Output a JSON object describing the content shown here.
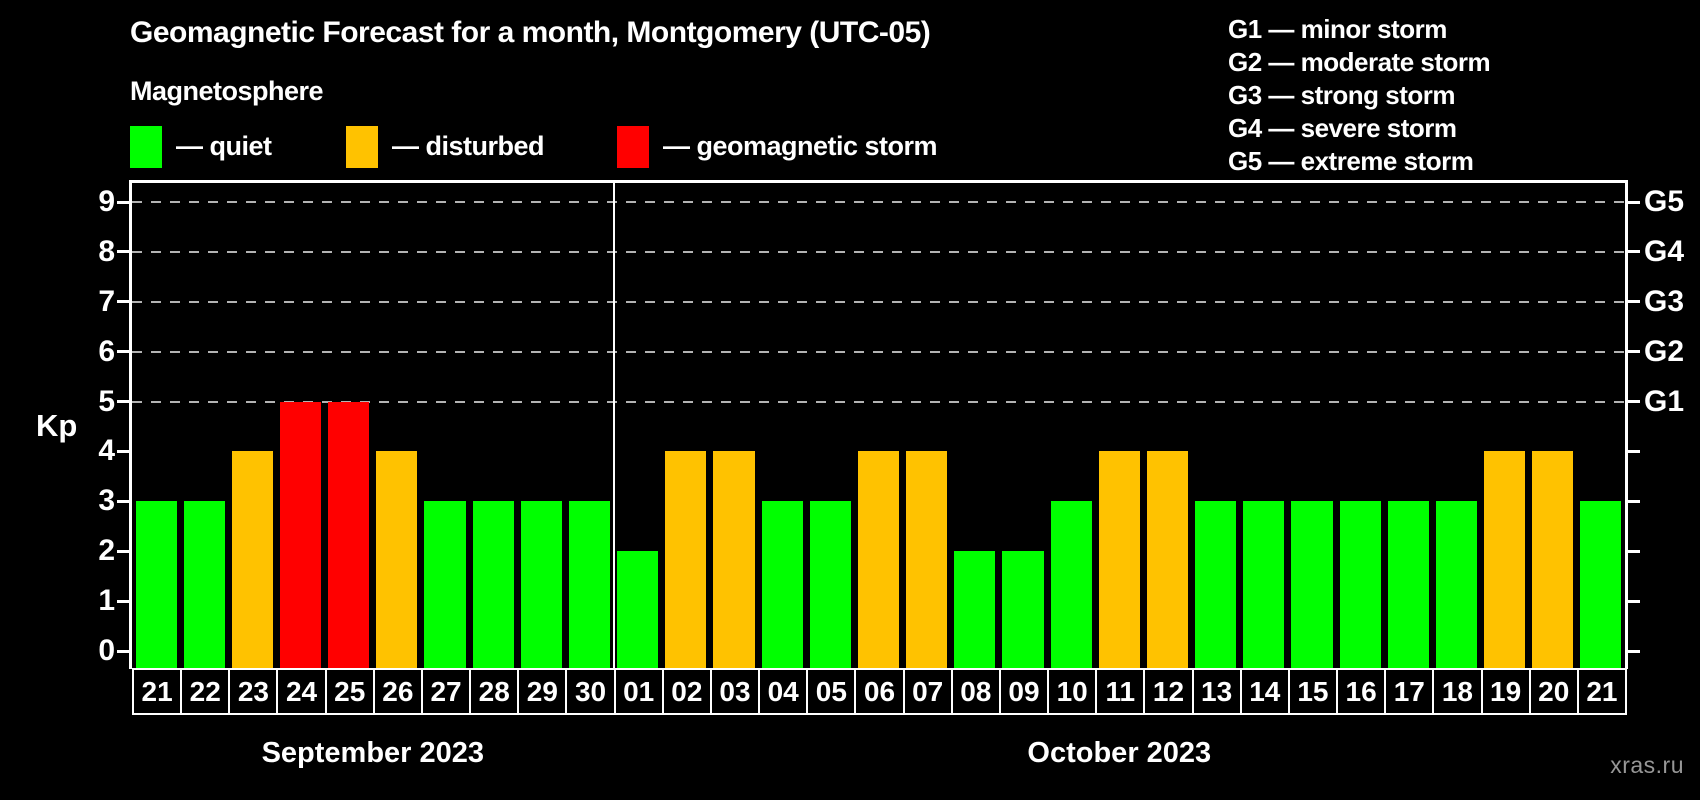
{
  "title": "Geomagnetic Forecast for a month, Montgomery (UTC-05)",
  "subtitle": "Magnetosphere",
  "watermark": "xras.ru",
  "legend": {
    "items": [
      {
        "id": "quiet",
        "swatch_color": "#00ff00",
        "label": "— quiet"
      },
      {
        "id": "disturbed",
        "swatch_color": "#ffc200",
        "label": "— disturbed"
      },
      {
        "id": "storm",
        "swatch_color": "#ff0000",
        "label": "— geomagnetic storm"
      }
    ]
  },
  "storm_scale_legend": [
    "G1 — minor storm",
    "G2 — moderate storm",
    "G3 — strong storm",
    "G4 — severe storm",
    "G5 — extreme storm"
  ],
  "chart_data": {
    "type": "bar",
    "ylabel": "Kp",
    "ylim": [
      0,
      9
    ],
    "yticks": [
      0,
      1,
      2,
      3,
      4,
      5,
      6,
      7,
      8,
      9
    ],
    "gridlines_at_kp": [
      5,
      6,
      7,
      8,
      9
    ],
    "grid_style": "dashed",
    "legend_position": "top-left",
    "right_axis": [
      {
        "kp": 5,
        "label": "G1"
      },
      {
        "kp": 6,
        "label": "G2"
      },
      {
        "kp": 7,
        "label": "G3"
      },
      {
        "kp": 8,
        "label": "G4"
      },
      {
        "kp": 9,
        "label": "G5"
      }
    ],
    "months": [
      {
        "label": "September 2023",
        "days": [
          {
            "day": "21",
            "kp": 3,
            "status": "quiet"
          },
          {
            "day": "22",
            "kp": 3,
            "status": "quiet"
          },
          {
            "day": "23",
            "kp": 4,
            "status": "disturbed"
          },
          {
            "day": "24",
            "kp": 5,
            "status": "storm"
          },
          {
            "day": "25",
            "kp": 5,
            "status": "storm"
          },
          {
            "day": "26",
            "kp": 4,
            "status": "disturbed"
          },
          {
            "day": "27",
            "kp": 3,
            "status": "quiet"
          },
          {
            "day": "28",
            "kp": 3,
            "status": "quiet"
          },
          {
            "day": "29",
            "kp": 3,
            "status": "quiet"
          },
          {
            "day": "30",
            "kp": 3,
            "status": "quiet"
          }
        ]
      },
      {
        "label": "October 2023",
        "days": [
          {
            "day": "01",
            "kp": 2,
            "status": "quiet"
          },
          {
            "day": "02",
            "kp": 4,
            "status": "disturbed"
          },
          {
            "day": "03",
            "kp": 4,
            "status": "disturbed"
          },
          {
            "day": "04",
            "kp": 3,
            "status": "quiet"
          },
          {
            "day": "05",
            "kp": 3,
            "status": "quiet"
          },
          {
            "day": "06",
            "kp": 4,
            "status": "disturbed"
          },
          {
            "day": "07",
            "kp": 4,
            "status": "disturbed"
          },
          {
            "day": "08",
            "kp": 2,
            "status": "quiet"
          },
          {
            "day": "09",
            "kp": 2,
            "status": "quiet"
          },
          {
            "day": "10",
            "kp": 3,
            "status": "quiet"
          },
          {
            "day": "11",
            "kp": 4,
            "status": "disturbed"
          },
          {
            "day": "12",
            "kp": 4,
            "status": "disturbed"
          },
          {
            "day": "13",
            "kp": 3,
            "status": "quiet"
          },
          {
            "day": "14",
            "kp": 3,
            "status": "quiet"
          },
          {
            "day": "15",
            "kp": 3,
            "status": "quiet"
          },
          {
            "day": "16",
            "kp": 3,
            "status": "quiet"
          },
          {
            "day": "17",
            "kp": 3,
            "status": "quiet"
          },
          {
            "day": "18",
            "kp": 3,
            "status": "quiet"
          },
          {
            "day": "19",
            "kp": 4,
            "status": "disturbed"
          },
          {
            "day": "20",
            "kp": 4,
            "status": "disturbed"
          },
          {
            "day": "21",
            "kp": 3,
            "status": "quiet"
          }
        ]
      }
    ]
  }
}
